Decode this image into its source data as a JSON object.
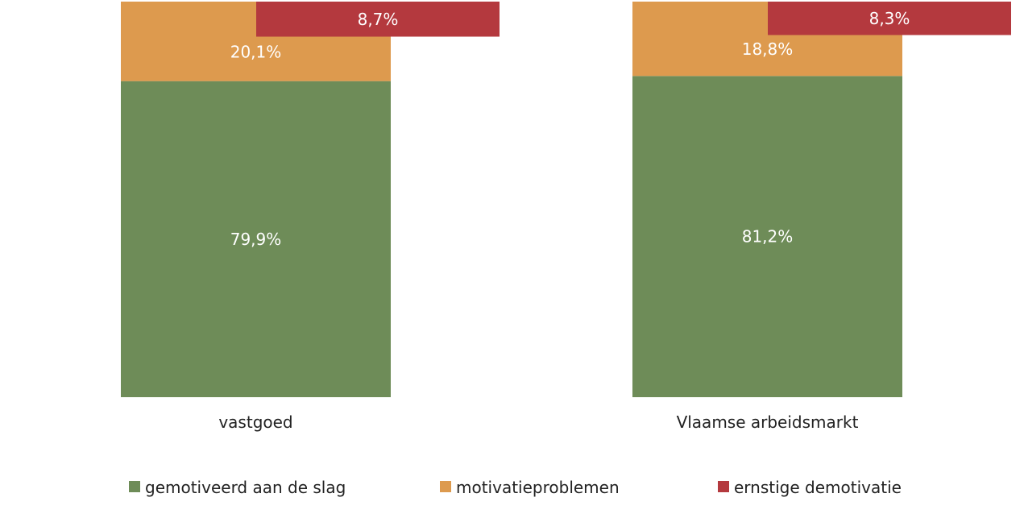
{
  "chart_data": {
    "type": "bar",
    "categories": [
      "vastgoed",
      "Vlaamse arbeidsmarkt"
    ],
    "series": [
      {
        "name": "gemotiveerd aan de slag",
        "values": [
          79.9,
          81.2
        ],
        "labels": [
          "79,9%",
          "81,2%"
        ],
        "color": "#6e8c58"
      },
      {
        "name": "motivatieproblemen",
        "values": [
          20.1,
          18.8
        ],
        "labels": [
          "20,1%",
          "18,8%"
        ],
        "color": "#dd9a4e"
      },
      {
        "name": "ernstige demotivatie",
        "values": [
          8.7,
          8.3
        ],
        "labels": [
          "8,7%",
          "8,3%"
        ],
        "color": "#b4393e"
      }
    ],
    "stacked": "first two series stack to 100%; the third is drawn as an offset sub-bar within the top of the stack",
    "ylim": [
      0,
      100
    ],
    "grid": false,
    "legend_position": "bottom"
  }
}
